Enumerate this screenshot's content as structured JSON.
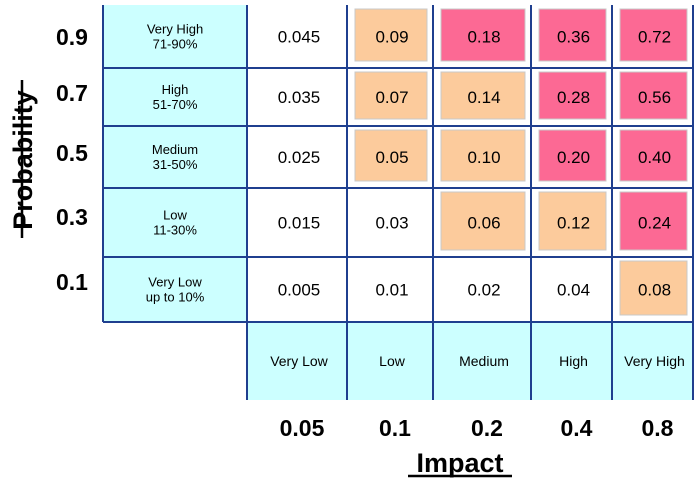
{
  "chart_data": {
    "type": "heatmap",
    "title": "",
    "xlabel": "Impact",
    "ylabel": "Probability",
    "y_values": [
      "0.9",
      "0.7",
      "0.5",
      "0.3",
      "0.1"
    ],
    "y_categories": [
      {
        "name": "Very High",
        "range": "71-90%"
      },
      {
        "name": "High",
        "range": "51-70%"
      },
      {
        "name": "Medium",
        "range": "31-50%"
      },
      {
        "name": "Low",
        "range": "11-30%"
      },
      {
        "name": "Very Low",
        "range": "up to 10%"
      }
    ],
    "x_categories": [
      "Very Low",
      "Low",
      "Medium",
      "High",
      "Very High"
    ],
    "x_values": [
      "0.05",
      "0.1",
      "0.2",
      "0.4",
      "0.8"
    ],
    "cells": [
      [
        {
          "value": "0.045",
          "level": "low"
        },
        {
          "value": "0.09",
          "level": "medium"
        },
        {
          "value": "0.18",
          "level": "high"
        },
        {
          "value": "0.36",
          "level": "high"
        },
        {
          "value": "0.72",
          "level": "high"
        }
      ],
      [
        {
          "value": "0.035",
          "level": "low"
        },
        {
          "value": "0.07",
          "level": "medium"
        },
        {
          "value": "0.14",
          "level": "medium"
        },
        {
          "value": "0.28",
          "level": "high"
        },
        {
          "value": "0.56",
          "level": "high"
        }
      ],
      [
        {
          "value": "0.025",
          "level": "low"
        },
        {
          "value": "0.05",
          "level": "medium"
        },
        {
          "value": "0.10",
          "level": "medium"
        },
        {
          "value": "0.20",
          "level": "high"
        },
        {
          "value": "0.40",
          "level": "high"
        }
      ],
      [
        {
          "value": "0.015",
          "level": "low"
        },
        {
          "value": "0.03",
          "level": "low"
        },
        {
          "value": "0.06",
          "level": "medium"
        },
        {
          "value": "0.12",
          "level": "medium"
        },
        {
          "value": "0.24",
          "level": "high"
        }
      ],
      [
        {
          "value": "0.005",
          "level": "low"
        },
        {
          "value": "0.01",
          "level": "low"
        },
        {
          "value": "0.02",
          "level": "low"
        },
        {
          "value": "0.04",
          "level": "low"
        },
        {
          "value": "0.08",
          "level": "medium"
        }
      ]
    ],
    "colors": {
      "label_fill": "#ccffff",
      "grid_line": "#1f3f8f",
      "low": "#ffffff",
      "medium": "#fccb9c",
      "high": "#fc6994",
      "text": "#000000"
    }
  }
}
